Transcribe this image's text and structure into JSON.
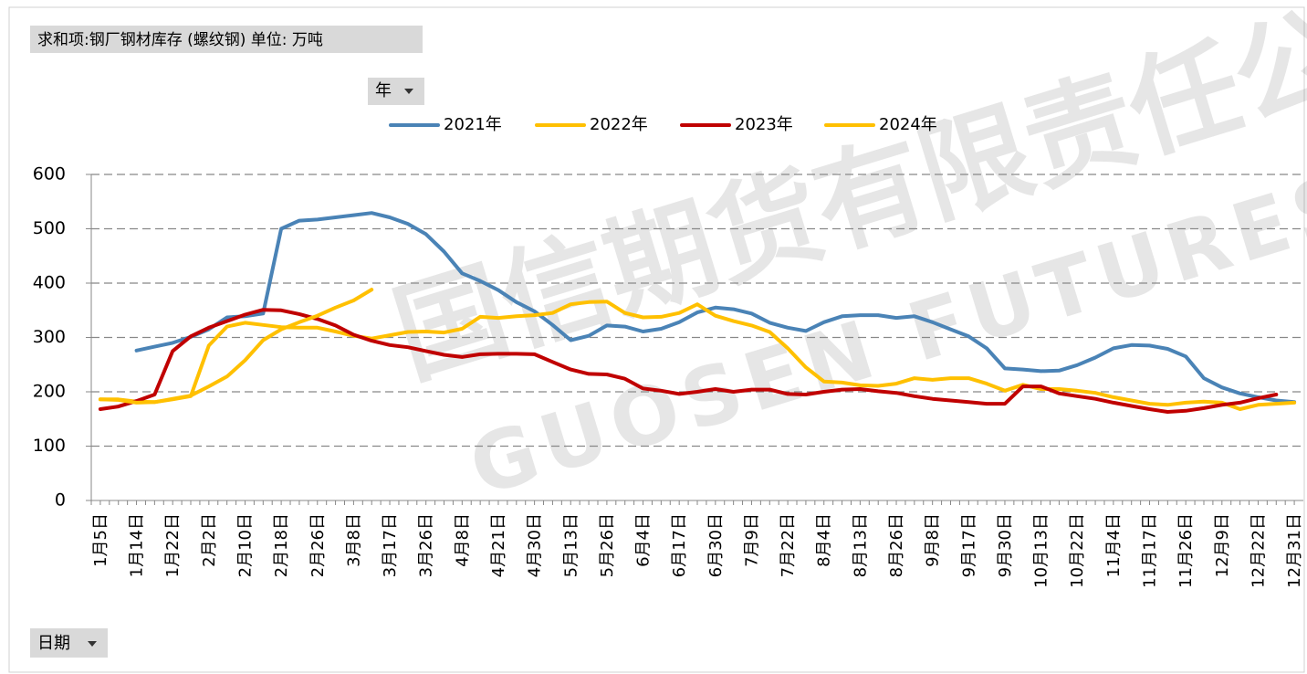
{
  "header": {
    "title": "求和项:钢厂钢材库存 (螺纹钢) 单位: 万吨",
    "series_field": "年",
    "category_field": "日期"
  },
  "watermark": {
    "cn": "国信期货有限责任公司",
    "en": "GUOSEN FUTURES CO.,LTD"
  },
  "chart_data": {
    "type": "line",
    "categories": [
      "1月5日",
      null,
      "1月14日",
      null,
      "1月22日",
      null,
      "2月2日",
      null,
      "2月10日",
      null,
      "2月18日",
      null,
      "2月26日",
      null,
      "3月8日",
      null,
      "3月17日",
      null,
      "3月26日",
      null,
      "4月8日",
      null,
      "4月21日",
      null,
      "4月30日",
      null,
      "5月13日",
      null,
      "5月26日",
      null,
      "6月4日",
      null,
      "6月17日",
      null,
      "6月30日",
      null,
      "7月9日",
      null,
      "7月22日",
      null,
      "8月4日",
      null,
      "8月13日",
      null,
      "8月26日",
      null,
      "9月8日",
      null,
      "9月17日",
      null,
      "9月30日",
      null,
      "10月13日",
      null,
      "10月22日",
      null,
      "11月4日",
      null,
      "11月17日",
      null,
      "11月26日",
      null,
      "12月9日",
      null,
      "12月22日",
      null,
      "12月31日"
    ],
    "series": [
      {
        "name": "2021年",
        "color": "#4a83b6",
        "values": [
          null,
          null,
          276,
          283,
          290,
          301,
          315,
          337,
          339,
          344,
          500,
          515,
          517,
          521,
          525,
          529,
          521,
          509,
          490,
          458,
          418,
          404,
          387,
          365,
          348,
          323,
          295,
          303,
          322,
          320,
          311,
          316,
          328,
          346,
          355,
          352,
          344,
          327,
          318,
          312,
          328,
          339,
          341,
          341,
          336,
          339,
          328,
          315,
          302,
          280,
          243,
          241,
          238,
          239,
          249,
          263,
          280,
          286,
          285,
          279,
          265,
          225,
          208,
          197,
          190,
          184,
          181
        ]
      },
      {
        "name": "2022年",
        "color": "#ffc000",
        "values": [
          186,
          186,
          182,
          181,
          186,
          192,
          285,
          320,
          327,
          323,
          319,
          318,
          318,
          311,
          303,
          298,
          304,
          310,
          311,
          309,
          316,
          338,
          336,
          339,
          341,
          345,
          361,
          365,
          366,
          345,
          337,
          338,
          345,
          361,
          340,
          330,
          322,
          310,
          280,
          245,
          219,
          217,
          212,
          211,
          215,
          225,
          222,
          225,
          225,
          215,
          202,
          213,
          205,
          205,
          202,
          198,
          190,
          184,
          178,
          176,
          180,
          182,
          180,
          168,
          176,
          178,
          180
        ]
      },
      {
        "name": "2023年",
        "color": "#c00000",
        "values": [
          168,
          173,
          183,
          195,
          275,
          302,
          318,
          330,
          342,
          351,
          350,
          343,
          334,
          322,
          305,
          294,
          286,
          282,
          275,
          268,
          264,
          269,
          270,
          270,
          269,
          255,
          241,
          233,
          232,
          224,
          206,
          202,
          196,
          200,
          205,
          200,
          204,
          204,
          196,
          195,
          200,
          204,
          205,
          201,
          198,
          192,
          187,
          184,
          181,
          178,
          178,
          210,
          210,
          197,
          192,
          187,
          180,
          174,
          168,
          163,
          165,
          170,
          176,
          180,
          188,
          195,
          null
        ]
      },
      {
        "name": "2024年",
        "color": "#ffc000",
        "values": [
          186,
          185,
          180,
          181,
          187,
          193,
          210,
          228,
          258,
          295,
          315,
          328,
          340,
          355,
          368,
          388,
          null,
          null,
          null,
          null,
          null,
          null,
          null,
          null,
          null,
          null,
          null,
          null,
          null,
          null,
          null,
          null,
          null,
          null,
          null,
          null,
          null,
          null,
          null,
          null,
          null,
          null,
          null,
          null,
          null,
          null,
          null,
          null,
          null,
          null,
          null,
          null,
          null,
          null,
          null,
          null,
          null,
          null,
          null,
          null,
          null,
          null,
          null,
          null,
          null,
          null,
          null
        ]
      }
    ],
    "ylim": [
      0,
      600
    ],
    "yticks": [
      0,
      100,
      200,
      300,
      400,
      500,
      600
    ],
    "grid": true,
    "legend": "top"
  }
}
